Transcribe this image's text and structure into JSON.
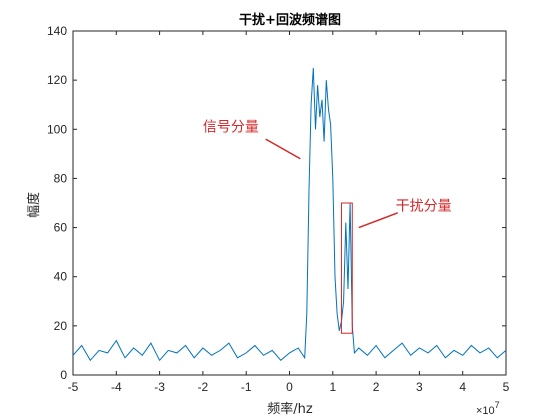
{
  "chart_data": {
    "type": "line",
    "title": "干扰+回波频谱图",
    "xlabel": "频率/hz",
    "ylabel": "幅度",
    "x_exponent": {
      "base": "×10",
      "power": "7"
    },
    "xlim": [
      -5,
      5
    ],
    "ylim": [
      0,
      140
    ],
    "xticks": [
      -5,
      -4,
      -3,
      -2,
      -1,
      0,
      1,
      2,
      3,
      4,
      5
    ],
    "yticks": [
      0,
      20,
      40,
      60,
      80,
      100,
      120,
      140
    ],
    "grid": false,
    "series_color": "#0072BD",
    "annotation_color": "#D62728",
    "series": [
      {
        "x": [
          -5.0,
          -4.8,
          -4.6,
          -4.4,
          -4.2,
          -4.0,
          -3.8,
          -3.6,
          -3.4,
          -3.2,
          -3.0,
          -2.8,
          -2.6,
          -2.4,
          -2.2,
          -2.0,
          -1.8,
          -1.6,
          -1.4,
          -1.2,
          -1.0,
          -0.8,
          -0.6,
          -0.4,
          -0.2,
          0.0,
          0.2,
          0.35,
          0.4,
          0.45,
          0.5,
          0.55,
          0.6,
          0.65,
          0.7,
          0.75,
          0.8,
          0.85,
          0.9,
          0.95,
          1.0,
          1.05,
          1.1,
          1.15,
          1.2,
          1.25,
          1.3,
          1.35,
          1.4,
          1.45,
          1.5,
          1.6,
          1.8,
          2.0,
          2.2,
          2.4,
          2.6,
          2.8,
          3.0,
          3.2,
          3.4,
          3.6,
          3.8,
          4.0,
          4.2,
          4.4,
          4.6,
          4.8,
          5.0
        ],
        "y": [
          8,
          12,
          6,
          10,
          9,
          14,
          7,
          11,
          8,
          13,
          6,
          10,
          9,
          12,
          7,
          11,
          8,
          10,
          13,
          7,
          9,
          12,
          8,
          10,
          6,
          9,
          11,
          7,
          25,
          75,
          110,
          125,
          100,
          118,
          105,
          112,
          95,
          120,
          108,
          102,
          80,
          40,
          25,
          18,
          22,
          30,
          62,
          35,
          70,
          20,
          9,
          11,
          8,
          12,
          7,
          10,
          13,
          8,
          11,
          9,
          12,
          7,
          10,
          8,
          12,
          9,
          11,
          7,
          10
        ]
      }
    ],
    "annotations": [
      {
        "text": "信号分量",
        "target": [
          0.25,
          88
        ]
      },
      {
        "text": "干扰分量",
        "target": [
          1.6,
          60
        ],
        "box": {
          "x0": 1.2,
          "x1": 1.45,
          "y0": 17,
          "y1": 70
        }
      }
    ]
  }
}
